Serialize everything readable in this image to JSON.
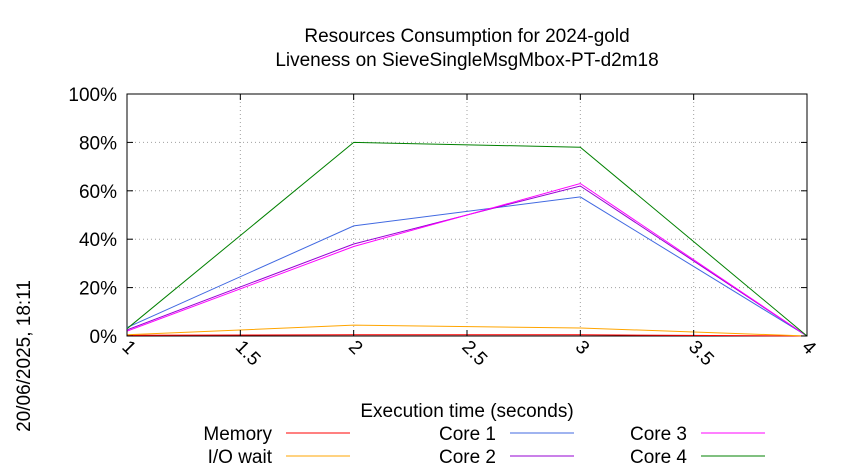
{
  "chart_data": {
    "type": "line",
    "title": [
      "Resources Consumption for 2024-gold",
      "Liveness on SieveSingleMsgMbox-PT-d2m18"
    ],
    "xlabel": "Execution time (seconds)",
    "ylabel": "",
    "x": [
      1,
      2,
      3,
      4
    ],
    "xlim": [
      1,
      4
    ],
    "ylim": [
      0,
      100
    ],
    "x_ticks": [
      "1",
      "1.5",
      "2",
      "2.5",
      "3",
      "3.5",
      "4"
    ],
    "x_tick_values": [
      1,
      1.5,
      2,
      2.5,
      3,
      3.5,
      4
    ],
    "y_ticks": [
      "0%",
      "20%",
      "40%",
      "60%",
      "80%",
      "100%"
    ],
    "y_tick_values": [
      0,
      20,
      40,
      60,
      80,
      100
    ],
    "grid": true,
    "legend_position": "bottom",
    "series": [
      {
        "name": "Memory",
        "color": "#ff0000",
        "values": [
          0.3,
          0.5,
          0.5,
          0
        ]
      },
      {
        "name": "I/O wait",
        "color": "#ffa500",
        "values": [
          0.5,
          4.5,
          3.3,
          0
        ]
      },
      {
        "name": "Core 1",
        "color": "#4169e1",
        "values": [
          3.5,
          45.5,
          57.5,
          0
        ]
      },
      {
        "name": "Core 2",
        "color": "#9400d3",
        "values": [
          2.5,
          38,
          62,
          0
        ]
      },
      {
        "name": "Core 3",
        "color": "#ff00ff",
        "values": [
          2,
          37,
          63,
          0
        ]
      },
      {
        "name": "Core 4",
        "color": "#008000",
        "values": [
          3,
          80,
          78,
          0
        ]
      }
    ]
  },
  "side_stamp": "20/06/2025, 18:11"
}
